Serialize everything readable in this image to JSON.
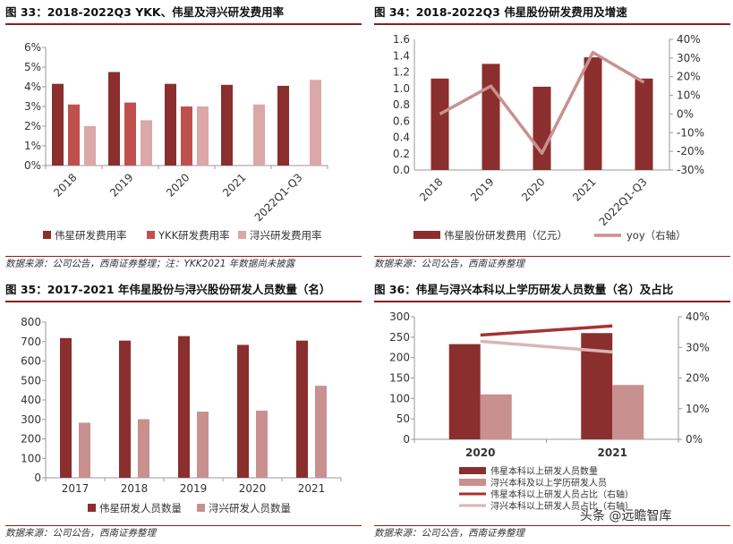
{
  "charts": [
    {
      "figure_title": "图 33：2018-2022Q3 YKK、伟星及浔兴研发费用率",
      "source": "数据来源：公司公告，西南证券整理；注：YKK2021 年数据尚未披露"
    },
    {
      "figure_title": "图 34：2018-2022Q3 伟星股份研发费用及增速",
      "source": "数据来源：公司公告，西南证券整理"
    },
    {
      "figure_title": "图 35：2017-2021 年伟星股份与浔兴股份研发人员数量（名）",
      "source": "数据来源：公司公告，西南证券整理"
    },
    {
      "figure_title": "图 36：伟星与浔兴本科以上学历研发人员数量（名）及占比",
      "source": "数据来源：公司公告，西南证券整理"
    }
  ],
  "chart_data": [
    {
      "type": "bar",
      "categories": [
        "2018",
        "2019",
        "2020",
        "2021",
        "2022Q1-Q3"
      ],
      "series": [
        {
          "name": "伟星研发费用率",
          "values": [
            4.15,
            4.75,
            4.15,
            4.1,
            4.05
          ],
          "color": "#8b2e2e"
        },
        {
          "name": "YKK研发费用率",
          "values": [
            3.1,
            3.2,
            3.0,
            null,
            null
          ],
          "color": "#c0504d"
        },
        {
          "name": "浔兴研发费用率",
          "values": [
            2.0,
            2.3,
            3.0,
            3.1,
            4.35
          ],
          "color": "#dba7a7"
        }
      ],
      "ylim": [
        0,
        6
      ],
      "yticks": [
        "0%",
        "1%",
        "2%",
        "3%",
        "4%",
        "5%",
        "6%"
      ],
      "legend": "bottom"
    },
    {
      "type": "bar+line",
      "categories": [
        "2018",
        "2019",
        "2020",
        "2021",
        "2022Q1-Q3"
      ],
      "series": [
        {
          "name": "伟星股份研发费用（亿元）",
          "type": "bar",
          "axis": "left",
          "values": [
            1.12,
            1.3,
            1.02,
            1.38,
            1.12
          ],
          "color": "#8b2e2e"
        },
        {
          "name": "yoy（右轴）",
          "type": "line",
          "axis": "right",
          "values": [
            0,
            15,
            -21,
            33,
            17
          ],
          "color": "#c99090"
        }
      ],
      "ylim_left": [
        0,
        1.6
      ],
      "yticks_left": [
        "0.0",
        "0.2",
        "0.4",
        "0.6",
        "0.8",
        "1.0",
        "1.2",
        "1.4",
        "1.6"
      ],
      "ylim_right": [
        -30,
        40
      ],
      "yticks_right": [
        "-30%",
        "-20%",
        "-10%",
        "0%",
        "10%",
        "20%",
        "30%",
        "40%"
      ],
      "legend": "bottom"
    },
    {
      "type": "bar",
      "categories": [
        "2017",
        "2018",
        "2019",
        "2020",
        "2021"
      ],
      "series": [
        {
          "name": "伟星研发人员数量",
          "values": [
            718,
            705,
            728,
            683,
            705
          ],
          "color": "#8b2e2e"
        },
        {
          "name": "浔兴研发人员数量",
          "values": [
            283,
            301,
            340,
            345,
            473
          ],
          "color": "#c99090"
        }
      ],
      "ylim": [
        0,
        800
      ],
      "yticks": [
        "0",
        "100",
        "200",
        "300",
        "400",
        "500",
        "600",
        "700",
        "800"
      ],
      "legend": "bottom"
    },
    {
      "type": "bar+line",
      "categories": [
        "2020",
        "2021"
      ],
      "series": [
        {
          "name": "伟星本科以上研发人员数量",
          "type": "bar",
          "axis": "left",
          "values": [
            233,
            260
          ],
          "color": "#8b2e2e"
        },
        {
          "name": "浔兴本科及以上学历研发人员",
          "type": "bar",
          "axis": "left",
          "values": [
            110,
            133
          ],
          "color": "#c99090"
        },
        {
          "name": "伟星本科以上研发人员占比（右轴）",
          "type": "line",
          "axis": "right",
          "values": [
            34,
            37
          ],
          "color": "#a83232"
        },
        {
          "name": "浔兴本科以上研发人员占比（右轴）",
          "type": "line",
          "axis": "right",
          "values": [
            32,
            28.5
          ],
          "color": "#d9b5b5"
        }
      ],
      "ylim_left": [
        0,
        300
      ],
      "yticks_left": [
        "0",
        "50",
        "100",
        "150",
        "200",
        "250",
        "300"
      ],
      "ylim_right": [
        0,
        40
      ],
      "yticks_right": [
        "0%",
        "10%",
        "20%",
        "30%",
        "40%"
      ],
      "legend": "bottom"
    }
  ],
  "watermark": "头条 @远瞻智库"
}
